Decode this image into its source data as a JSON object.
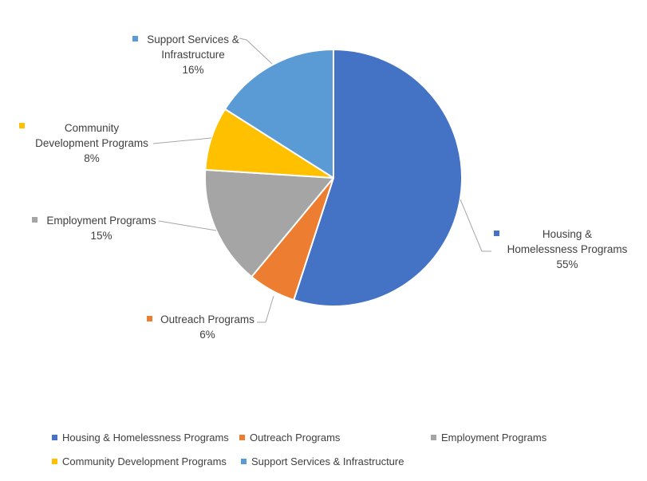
{
  "chart_data": {
    "type": "pie",
    "title": "",
    "categories": [
      "Housing & Homelessness Programs",
      "Outreach Programs",
      "Employment Programs",
      "Community Development Programs",
      "Support Services & Infrastructure"
    ],
    "values": [
      55,
      6,
      15,
      8,
      16
    ],
    "value_unit": "percent",
    "colors": [
      "#4472C4",
      "#ED7D31",
      "#A5A5A5",
      "#FFC000",
      "#5B9BD5"
    ],
    "start_angle_deg": 0,
    "direction": "clockwise",
    "legend_position": "bottom",
    "data_label_style": "category name and percentage outside slices with gray leader lines"
  },
  "callouts": {
    "housing": {
      "line1": "Housing &",
      "line2": "Homelessness Programs",
      "pct": "55%"
    },
    "outreach": {
      "line1": "Outreach Programs",
      "pct": "6%"
    },
    "employment": {
      "line1": "Employment Programs",
      "pct": "15%"
    },
    "community": {
      "line1": "Community",
      "line2": "Development Programs",
      "pct": "8%"
    },
    "support": {
      "line1": "Support Services &",
      "line2": "Infrastructure",
      "pct": "16%"
    }
  },
  "legend": {
    "items": [
      {
        "label": "Housing & Homelessness Programs",
        "color": "#4472C4"
      },
      {
        "label": "Outreach Programs",
        "color": "#ED7D31"
      },
      {
        "label": "Employment Programs",
        "color": "#A5A5A5"
      },
      {
        "label": "Community Development Programs",
        "color": "#FFC000"
      },
      {
        "label": "Support Services & Infrastructure",
        "color": "#5B9BD5"
      }
    ]
  },
  "styles": {
    "text_color": "#404040",
    "leader_line_color": "#A6A6A6",
    "background": "#FFFFFF"
  }
}
